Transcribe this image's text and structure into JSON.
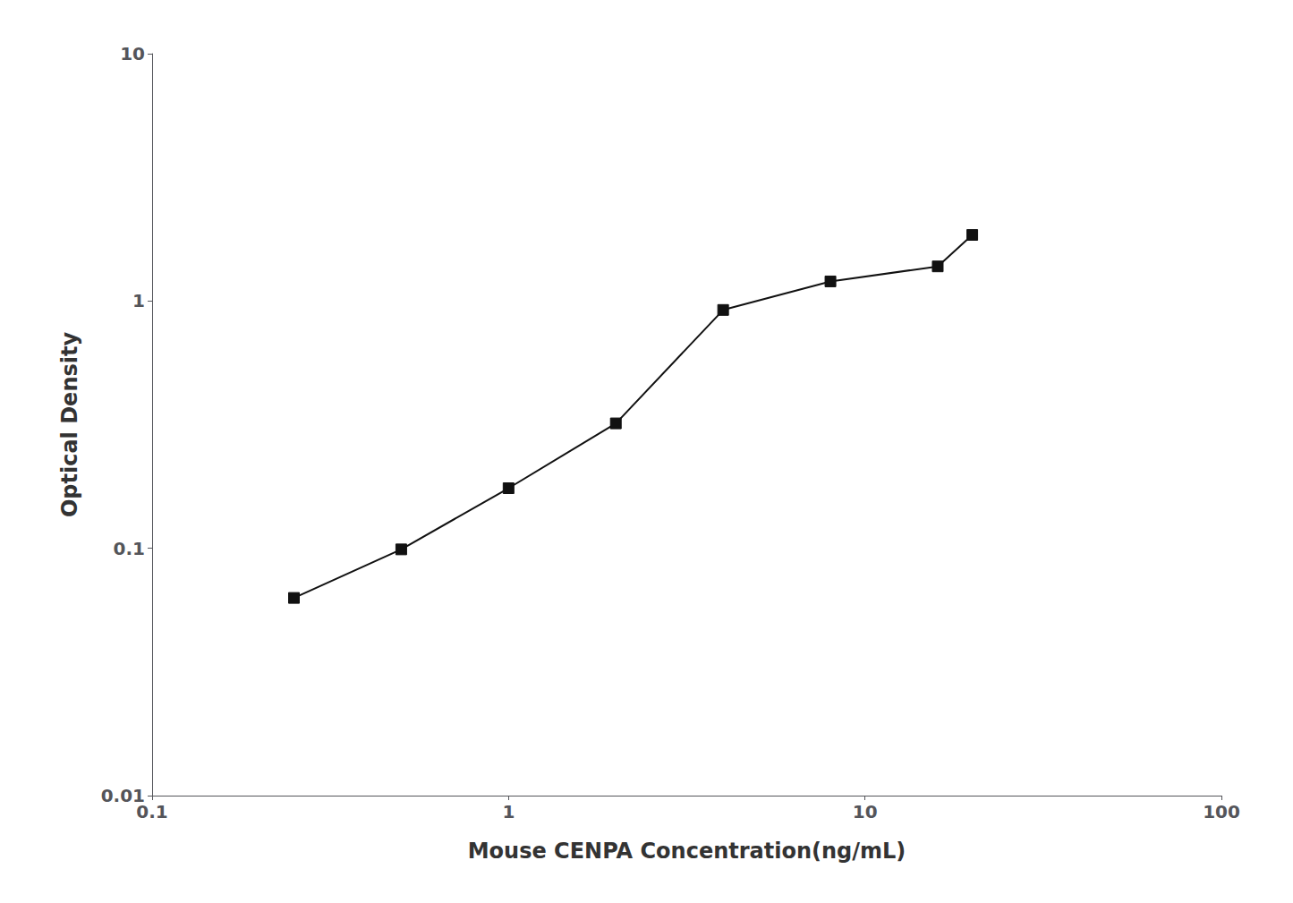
{
  "chart_data": {
    "type": "line",
    "x": [
      0.25,
      0.5,
      1.0,
      2.0,
      4.0,
      8.0,
      16.0,
      20.0
    ],
    "values": [
      0.063,
      0.099,
      0.175,
      0.32,
      0.92,
      1.2,
      1.38,
      1.85
    ],
    "xlabel": "Mouse CENPA Concentration(ng/mL)",
    "ylabel": "Optical Density",
    "xlim": [
      0.1,
      100
    ],
    "ylim": [
      0.01,
      10
    ],
    "xticks": [
      0.1,
      1,
      10,
      100
    ],
    "yticks": [
      0.01,
      0.1,
      1,
      10
    ],
    "log": true,
    "grid": false,
    "color": "#111111",
    "marker": "square"
  }
}
